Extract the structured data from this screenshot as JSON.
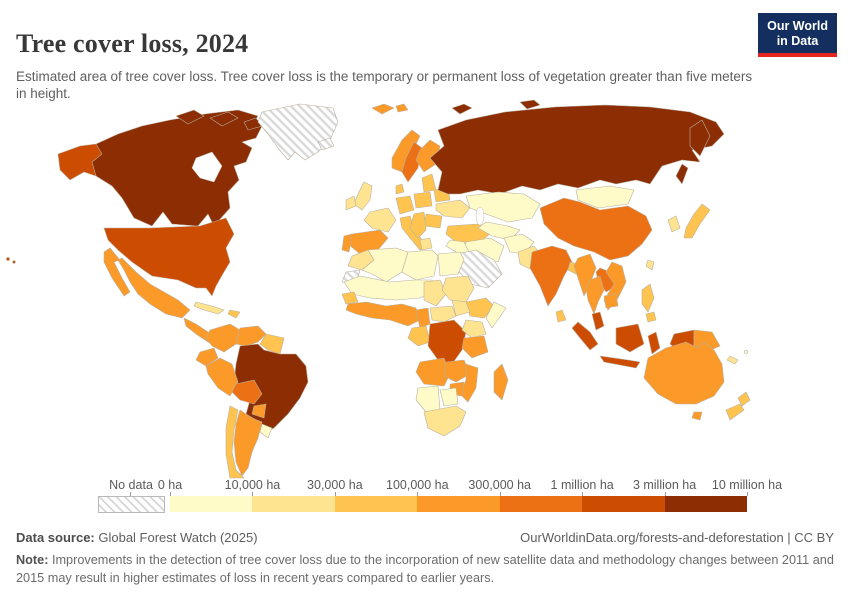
{
  "header": {
    "title": "Tree cover loss, 2024",
    "subtitle": "Estimated area of tree cover loss. Tree cover loss is the temporary or permanent loss of vegetation greater than five meters in height.",
    "logo": {
      "line1": "Our World",
      "line2": "in Data",
      "bg_color": "#142f5f",
      "accent_color": "#e5261f"
    }
  },
  "chart_data": {
    "type": "choropleth_map",
    "title": "Tree cover loss, 2024",
    "year": "2024",
    "unit": "hectares of tree cover loss",
    "legend": {
      "no_data_label": "No data",
      "tick_labels": [
        "0 ha",
        "10,000 ha",
        "30,000 ha",
        "100,000 ha",
        "300,000 ha",
        "1 million ha",
        "3 million ha",
        "10 million ha"
      ],
      "bin_colors": [
        "#FEFBC9",
        "#FEE391",
        "#FEC44F",
        "#FB9A29",
        "#EC7014",
        "#CC4C02",
        "#8C2D04"
      ],
      "no_data_pattern": "diagonal-hatch",
      "border_color": "#b9b0a0"
    },
    "regions": [
      {
        "id": "canada",
        "name": "Canada",
        "bin": 6
      },
      {
        "id": "usa",
        "name": "United States",
        "bin": 5
      },
      {
        "id": "greenland",
        "name": "Greenland",
        "bin": "no-data"
      },
      {
        "id": "iceland",
        "name": "Iceland",
        "bin": "no-data"
      },
      {
        "id": "mexico",
        "name": "Mexico",
        "bin": 3
      },
      {
        "id": "central-america",
        "name": "Central America",
        "bin": 3
      },
      {
        "id": "cuba",
        "name": "Cuba",
        "bin": 1
      },
      {
        "id": "hispaniola",
        "name": "Hispaniola",
        "bin": 2
      },
      {
        "id": "colombia",
        "name": "Colombia",
        "bin": 3
      },
      {
        "id": "venezuela",
        "name": "Venezuela",
        "bin": 3
      },
      {
        "id": "guianas",
        "name": "Guyana, Suriname & French Guiana",
        "bin": 2
      },
      {
        "id": "ecuador",
        "name": "Ecuador",
        "bin": 3
      },
      {
        "id": "peru",
        "name": "Peru",
        "bin": 3
      },
      {
        "id": "brazil",
        "name": "Brazil",
        "bin": 6
      },
      {
        "id": "bolivia",
        "name": "Bolivia",
        "bin": 4
      },
      {
        "id": "paraguay",
        "name": "Paraguay",
        "bin": 3
      },
      {
        "id": "argentina",
        "name": "Argentina",
        "bin": 3
      },
      {
        "id": "chile",
        "name": "Chile",
        "bin": 2
      },
      {
        "id": "uruguay",
        "name": "Uruguay",
        "bin": 0
      },
      {
        "id": "uk",
        "name": "United Kingdom",
        "bin": 1
      },
      {
        "id": "ireland",
        "name": "Ireland",
        "bin": 1
      },
      {
        "id": "france",
        "name": "France",
        "bin": 1
      },
      {
        "id": "spain",
        "name": "Spain",
        "bin": 3
      },
      {
        "id": "portugal",
        "name": "Portugal",
        "bin": 3
      },
      {
        "id": "germany",
        "name": "Germany",
        "bin": 2
      },
      {
        "id": "denmark",
        "name": "Denmark",
        "bin": 2
      },
      {
        "id": "norway",
        "name": "Norway",
        "bin": 3
      },
      {
        "id": "sweden",
        "name": "Sweden",
        "bin": 4
      },
      {
        "id": "finland",
        "name": "Finland",
        "bin": 3
      },
      {
        "id": "svalbard",
        "name": "Svalbard",
        "bin": 3
      },
      {
        "id": "poland",
        "name": "Poland",
        "bin": 2
      },
      {
        "id": "baltics",
        "name": "Baltic states",
        "bin": 2
      },
      {
        "id": "belarus",
        "name": "Belarus",
        "bin": 2
      },
      {
        "id": "ukraine",
        "name": "Ukraine",
        "bin": 1
      },
      {
        "id": "romania",
        "name": "Romania",
        "bin": 2
      },
      {
        "id": "balkans",
        "name": "Balkans",
        "bin": 2
      },
      {
        "id": "greece",
        "name": "Greece",
        "bin": 1
      },
      {
        "id": "italy",
        "name": "Italy",
        "bin": 2
      },
      {
        "id": "turkey",
        "name": "Turkey",
        "bin": 2
      },
      {
        "id": "russia",
        "name": "Russia",
        "bin": 6
      },
      {
        "id": "kazakhstan",
        "name": "Kazakhstan",
        "bin": 0
      },
      {
        "id": "central-asia",
        "name": "Central Asia",
        "bin": 0
      },
      {
        "id": "iran",
        "name": "Iran",
        "bin": 0
      },
      {
        "id": "iraq-syria",
        "name": "Iraq & Syria",
        "bin": 0
      },
      {
        "id": "saudi-arabia",
        "name": "Arabian Peninsula",
        "bin": "no-data"
      },
      {
        "id": "western-sahara",
        "name": "Western Sahara",
        "bin": "no-data"
      },
      {
        "id": "afghanistan",
        "name": "Afghanistan",
        "bin": 0
      },
      {
        "id": "pakistan",
        "name": "Pakistan",
        "bin": 1
      },
      {
        "id": "mongolia",
        "name": "Mongolia",
        "bin": 0
      },
      {
        "id": "china",
        "name": "China",
        "bin": 4
      },
      {
        "id": "india",
        "name": "India",
        "bin": 4
      },
      {
        "id": "bangladesh",
        "name": "Bangladesh",
        "bin": 2
      },
      {
        "id": "sri-lanka",
        "name": "Sri Lanka",
        "bin": 2
      },
      {
        "id": "myanmar",
        "name": "Myanmar",
        "bin": 3
      },
      {
        "id": "thailand",
        "name": "Thailand",
        "bin": 3
      },
      {
        "id": "laos",
        "name": "Laos",
        "bin": 4
      },
      {
        "id": "vietnam",
        "name": "Vietnam",
        "bin": 3
      },
      {
        "id": "cambodia",
        "name": "Cambodia",
        "bin": 3
      },
      {
        "id": "malaysia",
        "name": "Malaysia",
        "bin": 5
      },
      {
        "id": "indonesia",
        "name": "Indonesia",
        "bin": 5
      },
      {
        "id": "philippines",
        "name": "Philippines",
        "bin": 2
      },
      {
        "id": "papua-new-guinea",
        "name": "Papua New Guinea",
        "bin": 3
      },
      {
        "id": "taiwan",
        "name": "Taiwan",
        "bin": 1
      },
      {
        "id": "japan",
        "name": "Japan",
        "bin": 2
      },
      {
        "id": "south-korea",
        "name": "South Korea",
        "bin": 1
      },
      {
        "id": "morocco",
        "name": "Morocco",
        "bin": 1
      },
      {
        "id": "algeria",
        "name": "Algeria",
        "bin": 0
      },
      {
        "id": "libya",
        "name": "Libya",
        "bin": 0
      },
      {
        "id": "egypt",
        "name": "Egypt",
        "bin": 0
      },
      {
        "id": "sahel",
        "name": "Mauritania, Mali & Niger",
        "bin": 0
      },
      {
        "id": "chad",
        "name": "Chad",
        "bin": 1
      },
      {
        "id": "sudan",
        "name": "Sudan",
        "bin": 1
      },
      {
        "id": "ethiopia",
        "name": "Ethiopia",
        "bin": 2
      },
      {
        "id": "somalia",
        "name": "Somalia",
        "bin": 0
      },
      {
        "id": "senegal",
        "name": "Senegal",
        "bin": 2
      },
      {
        "id": "west-africa",
        "name": "West Africa (Guinea to Nigeria)",
        "bin": 3
      },
      {
        "id": "cameroon",
        "name": "Cameroon",
        "bin": 3
      },
      {
        "id": "central-african-republic",
        "name": "Central African Republic",
        "bin": 1
      },
      {
        "id": "south-sudan",
        "name": "South Sudan",
        "bin": 1
      },
      {
        "id": "congo-gabon",
        "name": "Congo & Gabon",
        "bin": 2
      },
      {
        "id": "drc",
        "name": "Democratic Republic of Congo",
        "bin": 5
      },
      {
        "id": "kenya-uganda",
        "name": "Kenya & Uganda",
        "bin": 1
      },
      {
        "id": "tanzania",
        "name": "Tanzania",
        "bin": 3
      },
      {
        "id": "angola",
        "name": "Angola",
        "bin": 3
      },
      {
        "id": "zambia",
        "name": "Zambia",
        "bin": 3
      },
      {
        "id": "mozambique",
        "name": "Mozambique",
        "bin": 3
      },
      {
        "id": "zimbabwe",
        "name": "Zimbabwe",
        "bin": 3
      },
      {
        "id": "namibia",
        "name": "Namibia",
        "bin": 0
      },
      {
        "id": "botswana",
        "name": "Botswana",
        "bin": 0
      },
      {
        "id": "south-africa",
        "name": "South Africa",
        "bin": 1
      },
      {
        "id": "madagascar",
        "name": "Madagascar",
        "bin": 3
      },
      {
        "id": "australia",
        "name": "Australia",
        "bin": 3
      },
      {
        "id": "new-zealand",
        "name": "New Zealand",
        "bin": 2
      },
      {
        "id": "fiji",
        "name": "Fiji",
        "bin": 0
      },
      {
        "id": "new-caledonia",
        "name": "New Caledonia",
        "bin": 1
      }
    ]
  },
  "footer": {
    "source_label": "Data source:",
    "source_text": " Global Forest Watch (2025)",
    "link_text": "OurWorldinData.org/forests-and-deforestation | CC BY",
    "note_label": "Note:",
    "note_text": " Improvements in the detection of tree cover loss due to the incorporation of new satellite data and methodology changes between 2011 and 2015 may result in higher estimates of loss in recent years compared to earlier years."
  }
}
